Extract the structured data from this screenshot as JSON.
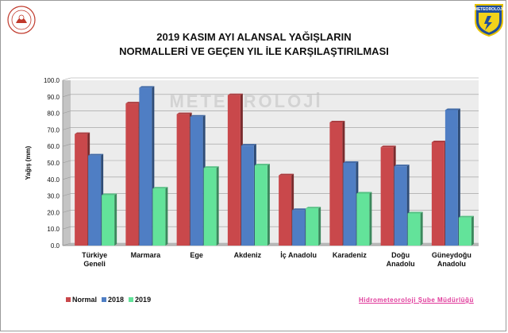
{
  "header": {
    "title_line1": "2019 KASIM AYI ALANSAL YAĞIŞLARIN",
    "title_line2": "NORMALLERİ VE GEÇEN YIL İLE KARŞILAŞTIRILMASI",
    "logo_right_text": "METEOROLOJI",
    "watermark": "METEOROLOJİ"
  },
  "footer": {
    "credit": "Hidrometeoroloji Şube Müdürlüğü"
  },
  "colors": {
    "normal": "#c9484b",
    "s2018": "#4f7ec4",
    "s2019": "#63e39a"
  },
  "chart_data": {
    "type": "bar",
    "ylabel": "Yağış (mm)",
    "ylim": [
      0,
      100
    ],
    "yticks": [
      "0.0",
      "10.0",
      "20.0",
      "30.0",
      "40.0",
      "50.0",
      "60.0",
      "70.0",
      "80.0",
      "90.0",
      "100.0"
    ],
    "grid": true,
    "legend_position": "bottom-left",
    "categories": [
      [
        "Türkiye",
        "Geneli"
      ],
      [
        "Marmara"
      ],
      [
        "Ege"
      ],
      [
        "Akdeniz"
      ],
      [
        "İç Anadolu"
      ],
      [
        "Karadeniz"
      ],
      [
        "Doğu",
        "Anadolu"
      ],
      [
        "Güneydoğu",
        "Anadolu"
      ]
    ],
    "series": [
      {
        "name": "Normal",
        "values": [
          67.5,
          86.0,
          79.5,
          91.0,
          42.5,
          74.5,
          59.5,
          62.5
        ]
      },
      {
        "name": "2018",
        "values": [
          54.5,
          95.5,
          78.0,
          60.5,
          21.5,
          50.0,
          48.0,
          82.0
        ]
      },
      {
        "name": "2019",
        "values": [
          30.5,
          34.5,
          47.0,
          48.5,
          22.5,
          31.5,
          19.5,
          17.0
        ]
      }
    ]
  }
}
